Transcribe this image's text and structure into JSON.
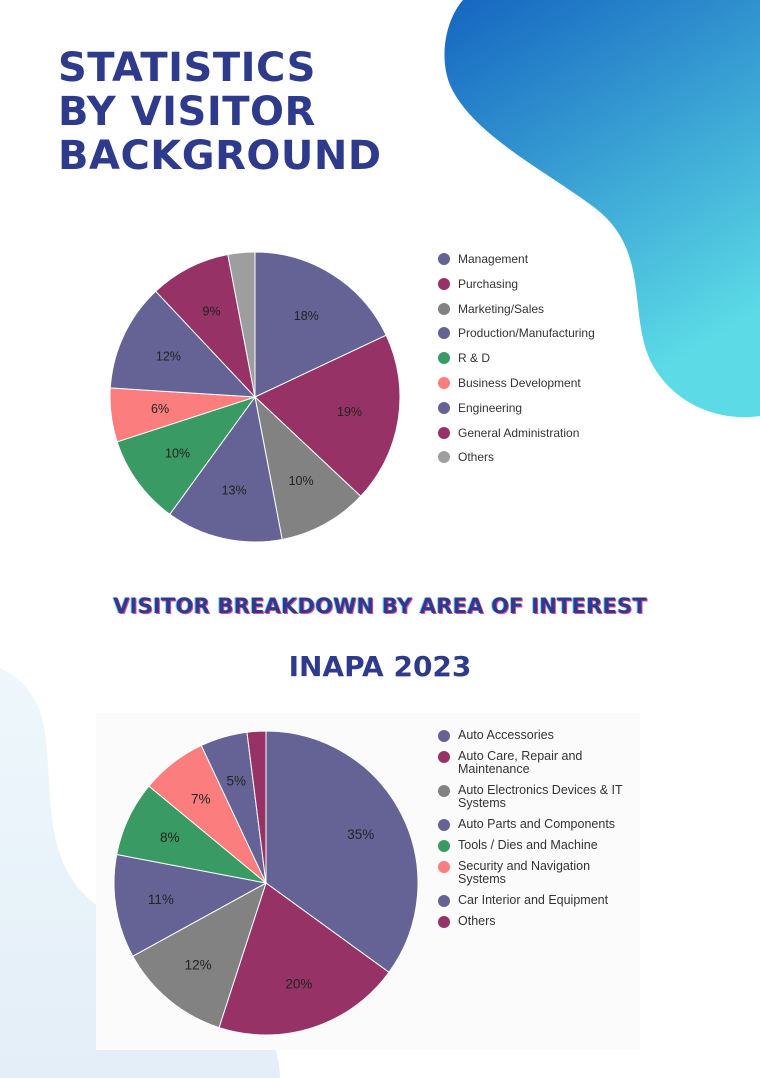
{
  "page": {
    "title_lines": [
      "STATISTICS",
      "BY VISITOR",
      "BACKGROUND"
    ],
    "subtitle": "VISITOR BREAKDOWN BY AREA OF INTEREST",
    "event_title": "INAPA 2023"
  },
  "colors": {
    "title": "#2e3a8c",
    "blob_top_right": [
      "#1565c0",
      "#5cdbe6"
    ],
    "blob_bottom_left": "#e6f3f8"
  },
  "chart_data": [
    {
      "type": "pie",
      "title": "",
      "labels": [
        "Management",
        "Purchasing",
        "Marketing/Sales",
        "Production/Manufacturing",
        "R & D",
        "Business Development",
        "Engineering",
        "General Administration",
        "Others"
      ],
      "values": [
        18,
        19,
        10,
        13,
        10,
        6,
        12,
        9,
        3
      ],
      "value_labels": [
        "18%",
        "19%",
        "10%",
        "13%",
        "10%",
        "6%",
        "12%",
        "9%",
        ""
      ],
      "colors": [
        "#656396",
        "#973266",
        "#828282",
        "#656396",
        "#3a9a64",
        "#fb7d7d",
        "#656396",
        "#973266",
        "#9e9e9e"
      ],
      "legend": "right"
    },
    {
      "type": "pie",
      "title": "",
      "labels": [
        "Auto Accessories",
        "Auto Care, Repair and Maintenance",
        "Auto Electronics Devices & IT Systems",
        "Auto Parts and Components",
        "Tools / Dies and Machine",
        "Security and Navigation Systems",
        "Car Interior and Equipment",
        "Others"
      ],
      "values": [
        35,
        20,
        12,
        11,
        8,
        7,
        5,
        2
      ],
      "value_labels": [
        "35%",
        "20%",
        "12%",
        "11%",
        "8%",
        "7%",
        "5%",
        ""
      ],
      "colors": [
        "#656396",
        "#973266",
        "#828282",
        "#656396",
        "#3a9a64",
        "#fb7d7d",
        "#656396",
        "#973266"
      ],
      "legend": "right"
    }
  ]
}
